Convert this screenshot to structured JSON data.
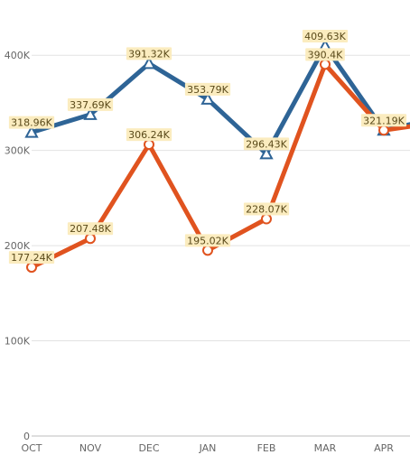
{
  "chart_data": {
    "type": "line",
    "categories": [
      "OCT",
      "NOV",
      "DEC",
      "JAN",
      "FEB",
      "MAR",
      "APR"
    ],
    "ylim": [
      0,
      450000
    ],
    "yticks": [
      0,
      100000,
      200000,
      300000,
      400000
    ],
    "ytick_labels": [
      "0",
      "100K",
      "200K",
      "300K",
      "400K"
    ],
    "grid": true,
    "series": [
      {
        "color": "#2e6496",
        "marker": "triangle",
        "values": [
          318960,
          337690,
          391320,
          353790,
          296430,
          409630,
          321190
        ],
        "labels": [
          "318.96K",
          "337.69K",
          "391.32K",
          "353.79K",
          "296.43K",
          "409.63K",
          ""
        ]
      },
      {
        "color": "#e0531f",
        "marker": "circle",
        "values": [
          177240,
          207480,
          306240,
          195020,
          228070,
          390400,
          321190
        ],
        "labels": [
          "177.24K",
          "207.48K",
          "306.24K",
          "195.02K",
          "228.07K",
          "390.4K",
          "321.19K"
        ]
      }
    ],
    "extends_right": true,
    "next_values": [
      335000,
      330000
    ],
    "label_style": {
      "background": "#fbecbf",
      "text_color": "#5a4a1a"
    }
  }
}
